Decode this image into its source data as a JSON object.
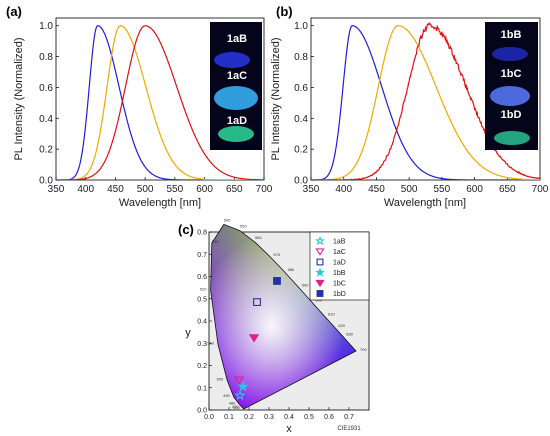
{
  "chart_data": [
    {
      "type": "line",
      "panel_label": "(a)",
      "xlabel": "Wavelength [nm]",
      "ylabel": "PL Intensity (Normalized)",
      "xlim": [
        350,
        700
      ],
      "ylim": [
        0,
        1.05
      ],
      "x_ticks": [
        "350",
        "400",
        "450",
        "500",
        "550",
        "600",
        "650",
        "700"
      ],
      "y_ticks": [
        "0.0",
        "0.2",
        "0.4",
        "0.6",
        "0.8",
        "1.0"
      ],
      "series": [
        {
          "color": "#1f1fd6",
          "peak": 420,
          "w_left": 14,
          "w_right": 36
        },
        {
          "color": "#f2a900",
          "peak": 458,
          "w_left": 22,
          "w_right": 43
        },
        {
          "color": "#e01010",
          "peak": 500,
          "w_left": 33,
          "w_right": 53
        }
      ],
      "photo_labels": [
        "1aB",
        "1aC",
        "1aD"
      ]
    },
    {
      "type": "line",
      "panel_label": "(b)",
      "xlabel": "Wavelength [nm]",
      "ylabel": "PL Intensity (Normalized)",
      "xlim": [
        350,
        700
      ],
      "ylim": [
        0,
        1.05
      ],
      "x_ticks": [
        "350",
        "400",
        "450",
        "500",
        "550",
        "600",
        "650",
        "700"
      ],
      "y_ticks": [
        "0.0",
        "0.2",
        "0.4",
        "0.6",
        "0.8",
        "1.0"
      ],
      "series": [
        {
          "color": "#1f1fd6",
          "peak": 413,
          "w_left": 14,
          "w_right": 45
        },
        {
          "color": "#f2a900",
          "peak": 483,
          "w_left": 30,
          "w_right": 58
        },
        {
          "color": "#e01010",
          "peak": 532,
          "w_left": 34,
          "w_right": 55
        }
      ],
      "photo_labels": [
        "1bB",
        "1bC",
        "1bD"
      ]
    },
    {
      "type": "scatter",
      "panel_label": "(c)",
      "xlabel": "x",
      "ylabel": "y",
      "xlim": [
        0,
        0.8
      ],
      "ylim": [
        0,
        0.8
      ],
      "x_ticks": [
        "0.0",
        "0.1",
        "0.2",
        "0.3",
        "0.4",
        "0.5",
        "0.6",
        "0.7"
      ],
      "y_ticks": [
        "0.0",
        "0.1",
        "0.2",
        "0.3",
        "0.4",
        "0.5",
        "0.6",
        "0.7",
        "0.8"
      ],
      "caption": "CIE1931",
      "wavelength_labels": [
        "460",
        "470",
        "480",
        "490",
        "500",
        "510",
        "520",
        "530",
        "540",
        "550",
        "560",
        "570",
        "580",
        "590",
        "600",
        "610",
        "620",
        "630",
        "700"
      ],
      "legend": [
        {
          "name": "1aB",
          "marker": "star-open",
          "color": "#22c8e6"
        },
        {
          "name": "1aC",
          "marker": "triangle-down-open",
          "color": "#e0208c"
        },
        {
          "name": "1aD",
          "marker": "square-open",
          "color": "#2233aa"
        },
        {
          "name": "1bB",
          "marker": "star-filled",
          "color": "#22c8e6"
        },
        {
          "name": "1bC",
          "marker": "triangle-down-filled",
          "color": "#e0208c"
        },
        {
          "name": "1bD",
          "marker": "square-filled",
          "color": "#2233aa"
        }
      ],
      "points": [
        {
          "name": "1aB",
          "x": 0.155,
          "y": 0.065
        },
        {
          "name": "1aC",
          "x": 0.15,
          "y": 0.135
        },
        {
          "name": "1aD",
          "x": 0.24,
          "y": 0.485
        },
        {
          "name": "1bB",
          "x": 0.17,
          "y": 0.105
        },
        {
          "name": "1bC",
          "x": 0.225,
          "y": 0.325
        },
        {
          "name": "1bD",
          "x": 0.34,
          "y": 0.58
        }
      ]
    }
  ]
}
